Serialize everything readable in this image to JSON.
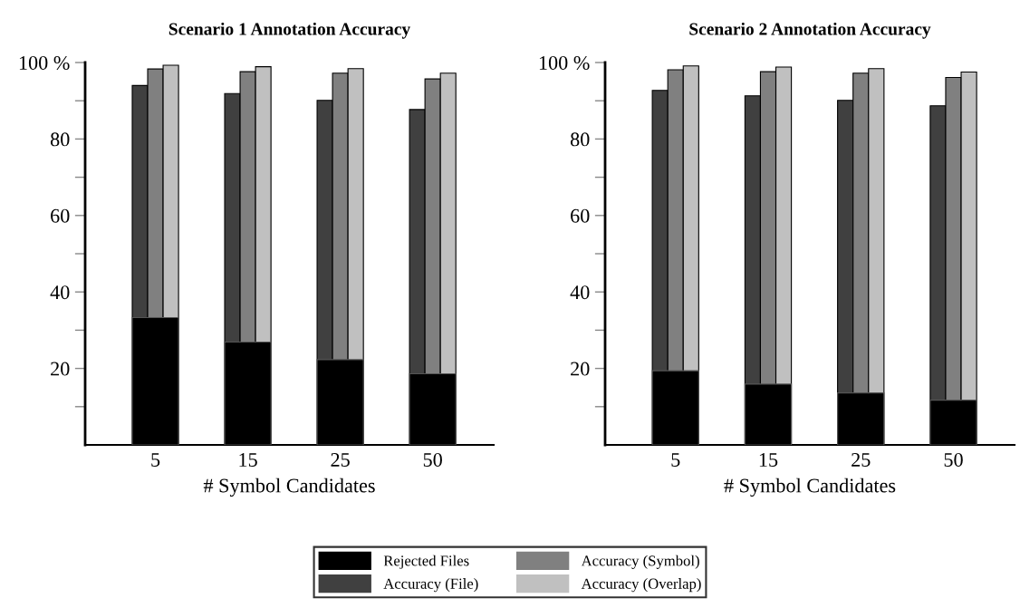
{
  "chart_data": [
    {
      "type": "bar",
      "title": "Scenario 1 Annotation Accuracy",
      "xlabel": "# Symbol Candidates",
      "categories": [
        "5",
        "15",
        "25",
        "50"
      ],
      "ylim": [
        0,
        100
      ],
      "yticks": [
        {
          "value": 10,
          "label": null
        },
        20,
        {
          "value": 30,
          "label": null
        },
        40,
        {
          "value": 50,
          "label": null
        },
        60,
        {
          "value": 70,
          "label": null
        },
        80,
        {
          "value": 90,
          "label": null
        },
        {
          "value": 100,
          "label": "100 %"
        }
      ],
      "legend": "bottom",
      "grid": false,
      "series": [
        {
          "name": "Rejected Files",
          "color": "#000000",
          "values": [
            33.3,
            26.9,
            22.3,
            18.6
          ]
        },
        {
          "name": "Accuracy (File)",
          "color": "#404040",
          "values": [
            94.0,
            91.9,
            90.1,
            87.7
          ]
        },
        {
          "name": "Accuracy (Symbol)",
          "color": "#808080",
          "values": [
            98.3,
            97.6,
            97.2,
            95.7
          ]
        },
        {
          "name": "Accuracy (Overlap)",
          "color": "#c0c0c0",
          "values": [
            99.3,
            98.9,
            98.4,
            97.2
          ]
        }
      ]
    },
    {
      "type": "bar",
      "title": "Scenario 2 Annotation Accuracy",
      "xlabel": "# Symbol Candidates",
      "categories": [
        "5",
        "15",
        "25",
        "50"
      ],
      "ylim": [
        0,
        100
      ],
      "yticks": [
        {
          "value": 10,
          "label": null
        },
        20,
        {
          "value": 30,
          "label": null
        },
        40,
        {
          "value": 50,
          "label": null
        },
        60,
        {
          "value": 70,
          "label": null
        },
        80,
        {
          "value": 90,
          "label": null
        },
        {
          "value": 100,
          "label": "100 %"
        }
      ],
      "grid": false,
      "series": [
        {
          "color": "#000000",
          "values": [
            19.4,
            15.9,
            13.6,
            11.7
          ]
        },
        {
          "color": "#404040",
          "values": [
            92.7,
            91.3,
            90.1,
            88.7
          ]
        },
        {
          "color": "#808080",
          "values": [
            98.1,
            97.6,
            97.2,
            96.1
          ]
        },
        {
          "color": "#c0c0c0",
          "values": [
            99.1,
            98.8,
            98.4,
            97.5
          ]
        }
      ]
    }
  ]
}
